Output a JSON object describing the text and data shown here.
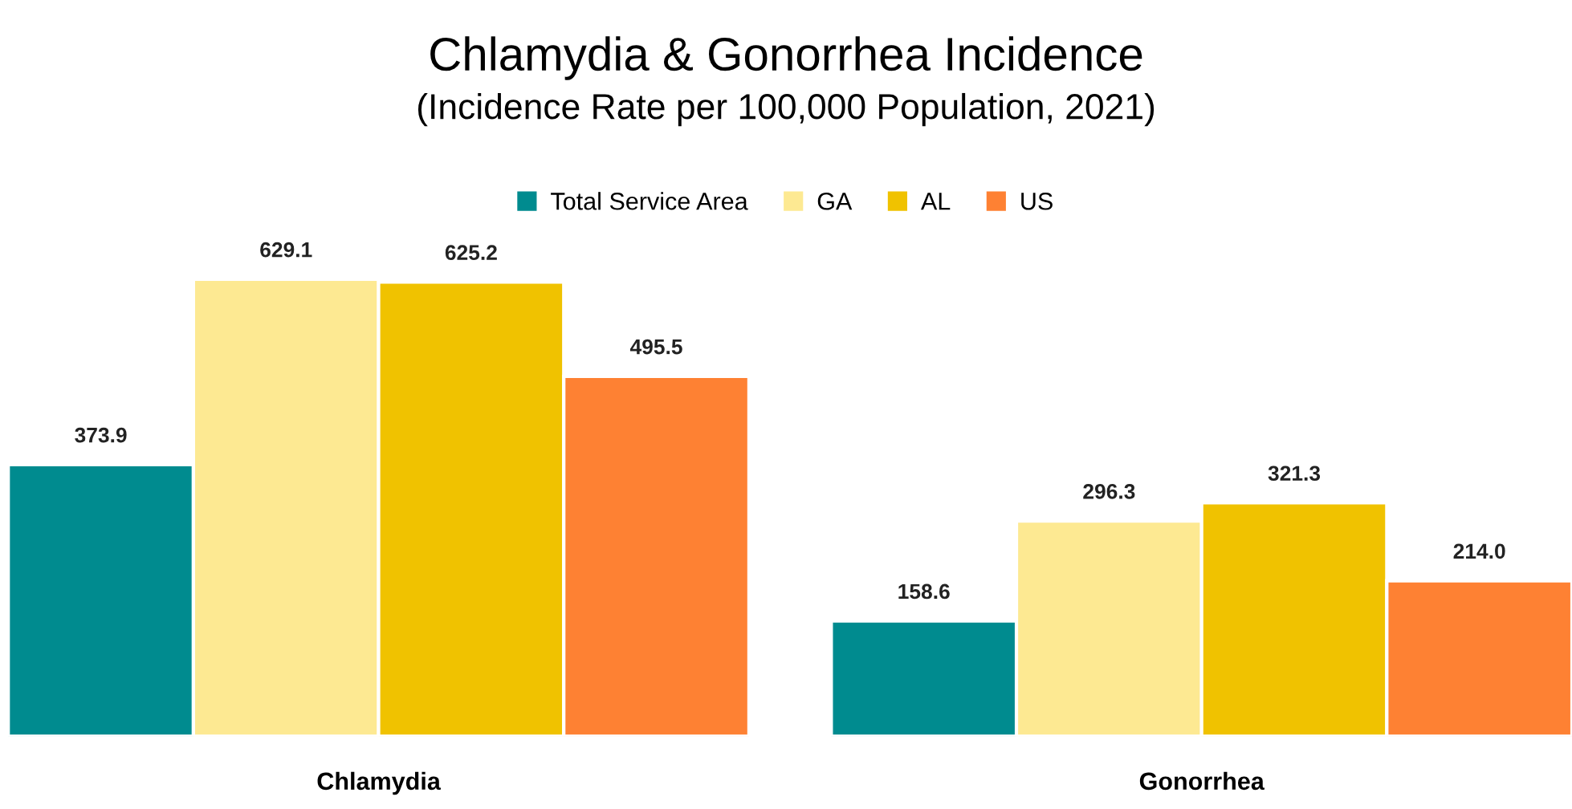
{
  "chart_data": {
    "type": "bar",
    "title": "Chlamydia & Gonorrhea Incidence",
    "subtitle": "(Incidence Rate per 100,000 Population, 2021)",
    "categories": [
      "Chlamydia",
      "Gonorrhea"
    ],
    "series": [
      {
        "name": "Total Service Area",
        "color": "#008b8f",
        "values": [
          373.9,
          158.6
        ],
        "value_labels": [
          "373.9",
          "158.6"
        ]
      },
      {
        "name": "GA",
        "color": "#fde992",
        "values": [
          629.1,
          296.3
        ],
        "value_labels": [
          "629.1",
          "296.3"
        ]
      },
      {
        "name": "AL",
        "color": "#f0c200",
        "values": [
          625.2,
          321.3
        ],
        "value_labels": [
          "625.2",
          "321.3"
        ]
      },
      {
        "name": "US",
        "color": "#fe8133",
        "values": [
          495.5,
          214.0
        ],
        "value_labels": [
          "495.5",
          "214.0"
        ]
      }
    ],
    "legend": "top",
    "grid": false
  }
}
